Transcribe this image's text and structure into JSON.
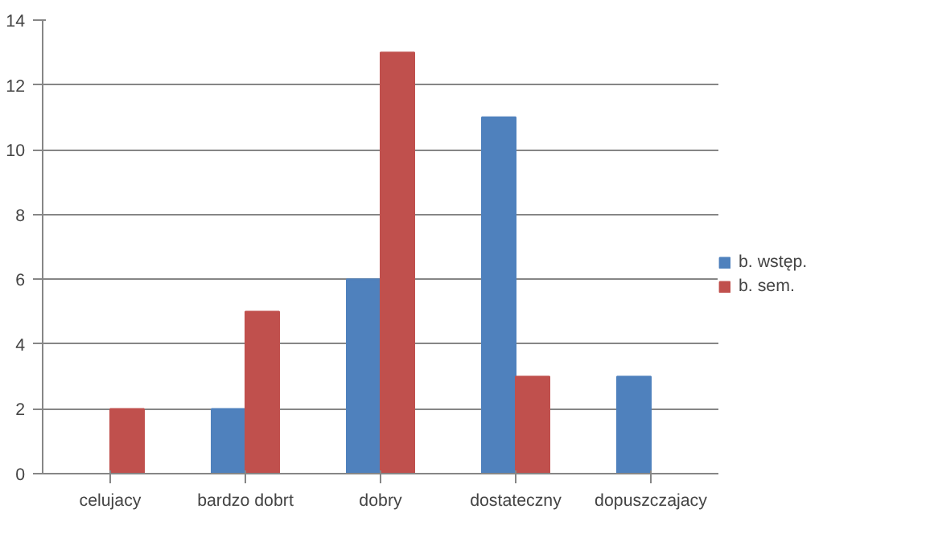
{
  "chart_data": {
    "type": "bar",
    "categories": [
      "celujacy",
      "bardzo dobrt",
      "dobry",
      "dostateczny",
      "dopuszczajacy"
    ],
    "series": [
      {
        "name": "b. wstęp.",
        "color": "#4f81bd",
        "values": [
          0,
          2,
          6,
          11,
          3
        ]
      },
      {
        "name": "b. sem.",
        "color": "#c0504d",
        "values": [
          2,
          5,
          13,
          3,
          0
        ]
      }
    ],
    "ylim": [
      0,
      14
    ],
    "yticks": [
      0,
      2,
      4,
      6,
      8,
      10,
      12,
      14
    ],
    "grid": "y",
    "legend": "right"
  }
}
